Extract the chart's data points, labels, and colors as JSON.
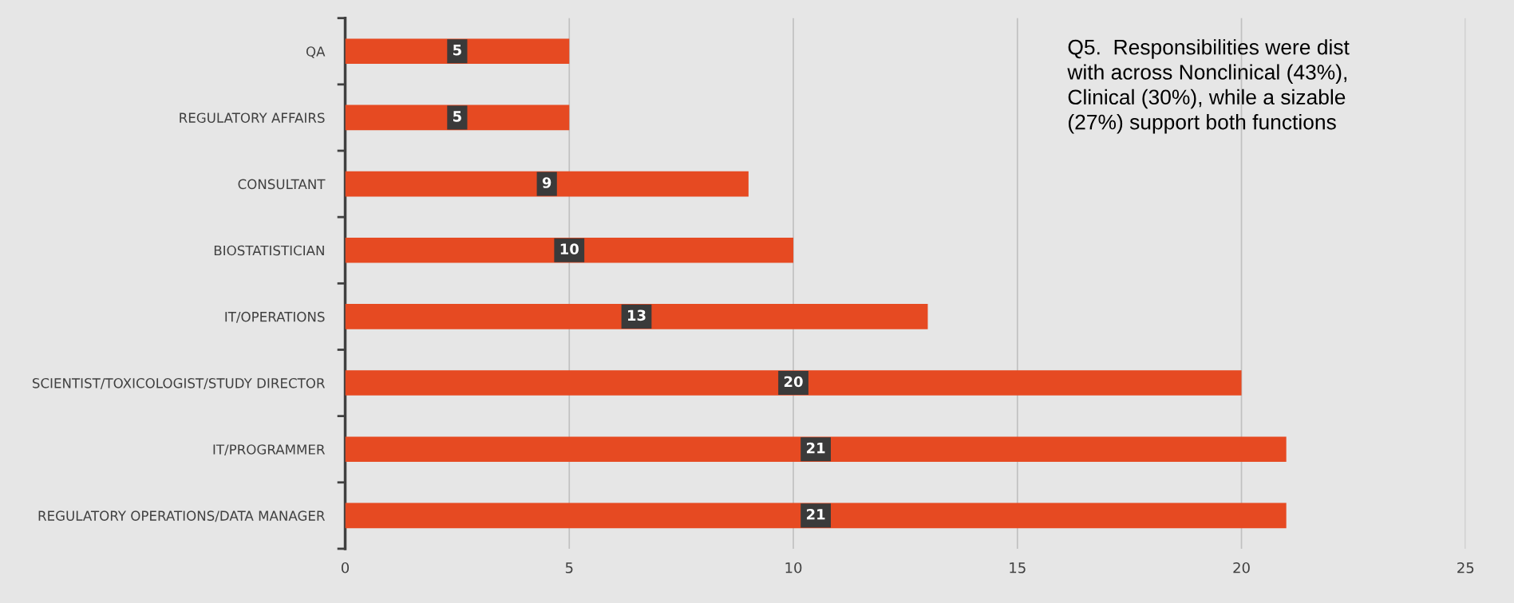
{
  "chart_data": {
    "type": "bar",
    "orientation": "horizontal",
    "categories": [
      "QA",
      "REGULATORY AFFAIRS",
      "CONSULTANT",
      "BIOSTATISTICIAN",
      "IT/OPERATIONS",
      "SCIENTIST/TOXICOLOGIST/STUDY DIRECTOR",
      "IT/PROGRAMMER",
      "REGULATORY OPERATIONS/DATA MANAGER"
    ],
    "values": [
      5,
      5,
      9,
      10,
      13,
      20,
      21,
      21
    ],
    "color": "#e64a22",
    "xlim": [
      0,
      25
    ],
    "xticks": [
      0,
      5,
      10,
      15,
      20,
      25
    ],
    "grid": "x",
    "data_labels": true,
    "annotations": [
      "Q5.  Responsibilities were dist\nwith across Nonclinical (43%),\nClinical (30%), while a sizable\n(27%) support both functions"
    ]
  }
}
